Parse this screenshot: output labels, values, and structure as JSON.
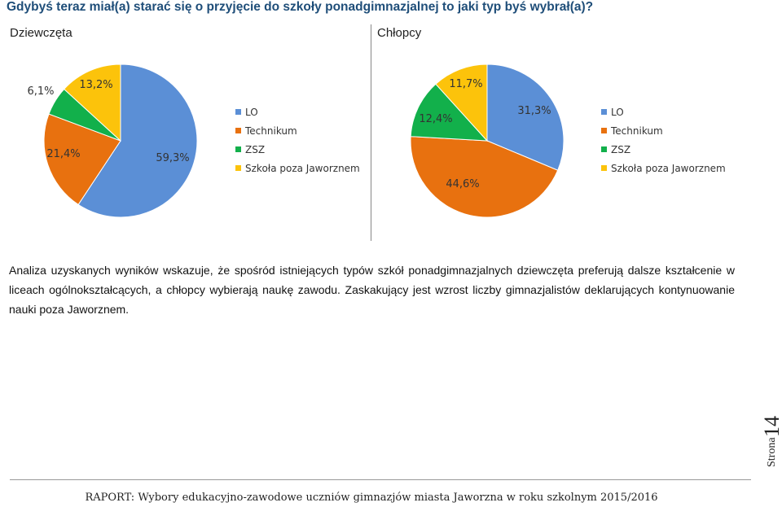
{
  "page": {
    "question": "Gdybyś teraz miał(a) starać się o przyjęcie do szkoły ponadgimnazjalnej to jaki typ byś wybrał(a)?",
    "analysis": "Analiza uzyskanych wyników wskazuje, że spośród istniejących typów szkół ponadgimnazjalnych dziewczęta preferują dalsze kształcenie w liceach ogólnokształcących, a chłopcy wybierają naukę zawodu. Zaskakujący jest wzrost liczby gimnazjalistów deklarujących kontynuowanie nauki poza Jaworznem.",
    "page_label": "Strona",
    "page_number": "14",
    "footer": "RAPORT: Wybory edukacyjno-zawodowe uczniów gimnazjów miasta Jaworzna w roku szkolnym 2015/2016"
  },
  "chart_data": [
    {
      "type": "pie",
      "title": "Dziewczęta",
      "categories": [
        "LO",
        "Technikum",
        "ZSZ",
        "Szkoła poza Jaworznem"
      ],
      "values": [
        59.3,
        21.4,
        6.1,
        13.2
      ],
      "labels": [
        "59,3%",
        "21,4%",
        "6,1%",
        "13,2%"
      ],
      "colors": [
        "#5b8fd6",
        "#e8710f",
        "#12b04b",
        "#fcc30b"
      ],
      "legend": "right"
    },
    {
      "type": "pie",
      "title": "Chłopcy",
      "categories": [
        "LO",
        "Technikum",
        "ZSZ",
        "Szkoła poza Jaworznem"
      ],
      "values": [
        31.3,
        44.6,
        12.4,
        11.7
      ],
      "labels": [
        "31,3%",
        "44,6%",
        "12,4%",
        "11,7%"
      ],
      "colors": [
        "#5b8fd6",
        "#e8710f",
        "#12b04b",
        "#fcc30b"
      ],
      "legend": "right"
    }
  ]
}
